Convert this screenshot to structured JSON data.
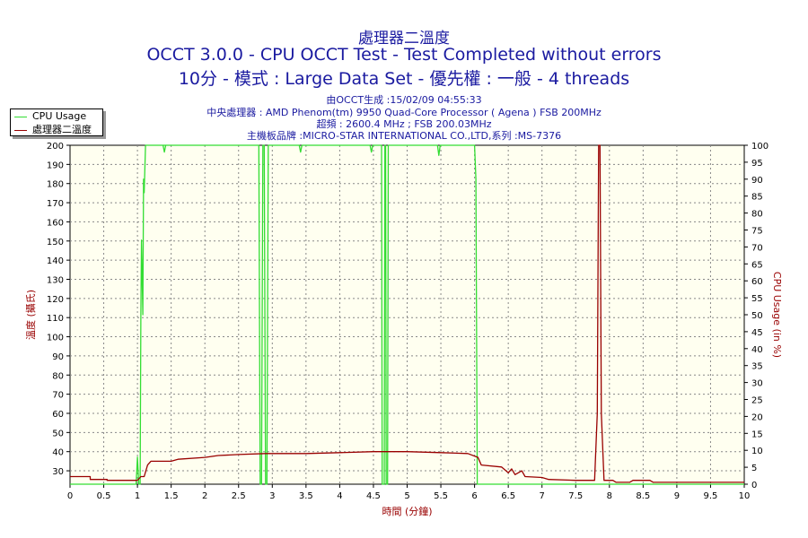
{
  "header": {
    "title1": "處理器二溫度",
    "title2": "OCCT 3.0.0 - CPU OCCT Test - Test Completed without errors",
    "title3": "10分 - 模式 : Large Data Set - 優先權 : 一般 - 4 threads",
    "info1": "由OCCT生成 :15/02/09 04:55:33",
    "info2": "中央處理器 : AMD Phenom(tm) 9950 Quad-Core Processor ( Agena ) FSB 200MHz",
    "info3": "超頻 : 2600.4 MHz ; FSB 200.03MHz",
    "info4": "主機板品牌 :MICRO-STAR INTERNATIONAL CO.,LTD,系列 :MS-7376"
  },
  "legend": {
    "cpu": "CPU Usage",
    "temp": "處理器二溫度"
  },
  "colors": {
    "cpu": "#33dd33",
    "temp": "#990000",
    "plot_bg": "#fffff0",
    "axis_text": "#000000",
    "label_left": "#990000",
    "label_right": "#990000",
    "grid": "#888888"
  },
  "chart_data": {
    "type": "line",
    "xlabel": "時間 (分鐘)",
    "ylabel_left": "溫度 (攝氏)",
    "ylabel_right": "CPU Usage (in %)",
    "xlim": [
      0,
      10
    ],
    "ylim_left": [
      23,
      200
    ],
    "ylim_right": [
      0,
      100
    ],
    "grid": true,
    "legend_position": "top-left",
    "x_ticks": [
      "0",
      "0.5",
      "1",
      "1.5",
      "2",
      "2.5",
      "3",
      "3.5",
      "4",
      "4.5",
      "5",
      "5.5",
      "6",
      "6.5",
      "7",
      "7.5",
      "8",
      "8.5",
      "9",
      "9.5",
      "10"
    ],
    "y_ticks_left": [
      "30",
      "40",
      "50",
      "60",
      "70",
      "80",
      "90",
      "100",
      "110",
      "120",
      "130",
      "140",
      "150",
      "160",
      "170",
      "180",
      "190",
      "200"
    ],
    "y_ticks_right": [
      "0",
      "5",
      "10",
      "15",
      "20",
      "25",
      "30",
      "35",
      "40",
      "45",
      "50",
      "55",
      "60",
      "65",
      "70",
      "75",
      "80",
      "85",
      "90",
      "95",
      "100"
    ],
    "series": [
      {
        "name": "CPU Usage",
        "axis": "right",
        "points": [
          [
            0,
            0
          ],
          [
            0.98,
            0
          ],
          [
            1.0,
            8
          ],
          [
            1.02,
            0
          ],
          [
            1.04,
            0
          ],
          [
            1.05,
            50
          ],
          [
            1.06,
            72
          ],
          [
            1.08,
            50
          ],
          [
            1.09,
            90
          ],
          [
            1.1,
            86
          ],
          [
            1.12,
            100
          ],
          [
            1.5,
            100
          ],
          [
            1.38,
            100
          ],
          [
            1.4,
            98
          ],
          [
            1.42,
            100
          ],
          [
            2.8,
            100
          ],
          [
            2.82,
            0
          ],
          [
            2.84,
            0
          ],
          [
            2.86,
            100
          ],
          [
            2.88,
            100
          ],
          [
            2.9,
            0
          ],
          [
            2.92,
            0
          ],
          [
            2.94,
            100
          ],
          [
            3.4,
            100
          ],
          [
            3.42,
            98
          ],
          [
            3.44,
            100
          ],
          [
            4.45,
            100
          ],
          [
            4.47,
            98
          ],
          [
            4.49,
            100
          ],
          [
            4.62,
            100
          ],
          [
            4.63,
            0
          ],
          [
            4.66,
            0
          ],
          [
            4.67,
            100
          ],
          [
            4.68,
            100
          ],
          [
            4.69,
            0
          ],
          [
            4.71,
            0
          ],
          [
            4.72,
            100
          ],
          [
            5.45,
            100
          ],
          [
            5.47,
            97
          ],
          [
            5.49,
            100
          ],
          [
            6.0,
            100
          ],
          [
            6.02,
            90
          ],
          [
            6.04,
            0
          ],
          [
            10,
            0
          ]
        ]
      },
      {
        "name": "處理器二溫度",
        "axis": "left",
        "points": [
          [
            0,
            27
          ],
          [
            0.3,
            27
          ],
          [
            0.3,
            25.5
          ],
          [
            0.55,
            25.5
          ],
          [
            0.55,
            25
          ],
          [
            1.0,
            25
          ],
          [
            1.05,
            27
          ],
          [
            1.1,
            27
          ],
          [
            1.15,
            33
          ],
          [
            1.2,
            35
          ],
          [
            1.5,
            35
          ],
          [
            1.6,
            36
          ],
          [
            2.0,
            37
          ],
          [
            2.2,
            38
          ],
          [
            2.5,
            38.5
          ],
          [
            2.9,
            39
          ],
          [
            3.5,
            39
          ],
          [
            4.0,
            39.5
          ],
          [
            4.5,
            40
          ],
          [
            5.0,
            40
          ],
          [
            5.5,
            39.5
          ],
          [
            5.9,
            39
          ],
          [
            6.05,
            37
          ],
          [
            6.1,
            33
          ],
          [
            6.4,
            32
          ],
          [
            6.5,
            29
          ],
          [
            6.55,
            31
          ],
          [
            6.6,
            28
          ],
          [
            6.7,
            30
          ],
          [
            6.75,
            27
          ],
          [
            7.0,
            26.5
          ],
          [
            7.1,
            25.5
          ],
          [
            7.5,
            25
          ],
          [
            7.78,
            25
          ],
          [
            7.82,
            60
          ],
          [
            7.84,
            200
          ],
          [
            7.86,
            200
          ],
          [
            7.88,
            60
          ],
          [
            7.92,
            25
          ],
          [
            8.05,
            25
          ],
          [
            8.1,
            24
          ],
          [
            8.3,
            24
          ],
          [
            8.35,
            25
          ],
          [
            8.6,
            25
          ],
          [
            8.65,
            24
          ],
          [
            10,
            24
          ]
        ]
      }
    ]
  }
}
